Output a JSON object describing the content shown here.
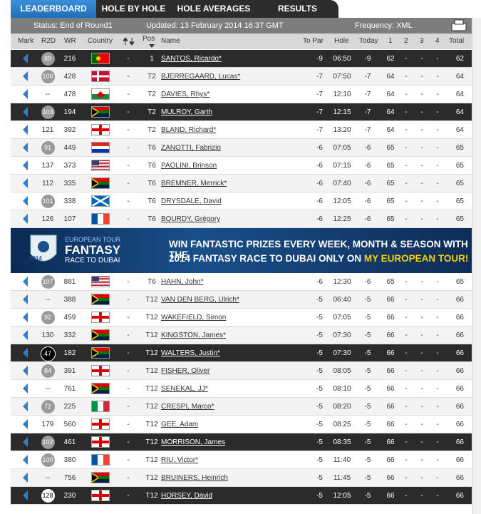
{
  "tabs": [
    "LEADERBOARD",
    "HOLE BY HOLE",
    "HOLE AVERAGES",
    "RESULTS"
  ],
  "status": {
    "state": "Status: End of Round1",
    "updated": "Updated: 13 February 2014 16:37 GMT",
    "frequency": "Frequency: XML"
  },
  "headers": {
    "mark": "Mark",
    "r2d": "R2D",
    "wr": "WR",
    "country": "Country",
    "pos": "Pos",
    "name": "Name",
    "to_par": "To Par",
    "hole": "Hole",
    "today": "Today",
    "r1": "1",
    "r2": "2",
    "r3": "3",
    "r4": "4",
    "total": "Total"
  },
  "banner": {
    "brand": "EUROPEAN TOUR",
    "fantasy": "FANTASY",
    "race": "RACE TO DUBAI",
    "year": "2014",
    "line1": "WIN FANTASTIC PRIZES EVERY WEEK, MONTH & SEASON WITH THE",
    "line2": "2014 FANTASY RACE TO DUBAI ONLY ON ",
    "line2_highlight": "MY EUROPEAN TOUR!"
  },
  "rows": [
    {
      "r2d": 89,
      "badge": "grey",
      "wr": 216,
      "move": "-",
      "pos": "1",
      "name": "SANTOS, Ricardo*",
      "to_par": -9,
      "hole": "06:50",
      "today": -9,
      "r1": 62,
      "r2": "-",
      "r3": "-",
      "r4": "-",
      "total": 62,
      "highlight": true
    },
    {
      "r2d": 106,
      "badge": "grey",
      "wr": 428,
      "move": "-",
      "pos": "T2",
      "name": "BJERREGAARD, Lucas*",
      "to_par": -7,
      "hole": "07:50",
      "today": -7,
      "r1": 64,
      "r2": "-",
      "r3": "-",
      "r4": "-",
      "total": 64,
      "highlight": false
    },
    {
      "r2d": "--",
      "badge": "none",
      "wr": 478,
      "move": "-",
      "pos": "T2",
      "name": "DAVIES, Rhys*",
      "to_par": -7,
      "hole": "12:10",
      "today": -7,
      "r1": 64,
      "r2": "-",
      "r3": "-",
      "r4": "-",
      "total": 64,
      "highlight": false
    },
    {
      "r2d": 103,
      "badge": "grey",
      "wr": 194,
      "move": "-",
      "pos": "T2",
      "name": "MULROY, Garth",
      "to_par": -7,
      "hole": "12:15",
      "today": -7,
      "r1": 64,
      "r2": "-",
      "r3": "-",
      "r4": "-",
      "total": 64,
      "highlight": true
    },
    {
      "r2d": 121,
      "badge": "none",
      "wr": 392,
      "move": "-",
      "pos": "T2",
      "name": "BLAND, Richard*",
      "to_par": -7,
      "hole": "13:20",
      "today": -7,
      "r1": 64,
      "r2": "-",
      "r3": "-",
      "r4": "-",
      "total": 64,
      "highlight": false
    },
    {
      "r2d": 91,
      "badge": "grey",
      "wr": 449,
      "move": "-",
      "pos": "T6",
      "name": "ZANOTTI, Fabrizio",
      "to_par": -6,
      "hole": "07:05",
      "today": -6,
      "r1": 65,
      "r2": "-",
      "r3": "-",
      "r4": "-",
      "total": 65,
      "highlight": false
    },
    {
      "r2d": 137,
      "badge": "none",
      "wr": 373,
      "move": "-",
      "pos": "T6",
      "name": "PAOLINI, Brinson",
      "to_par": -6,
      "hole": "07:15",
      "today": -6,
      "r1": 65,
      "r2": "-",
      "r3": "-",
      "r4": "-",
      "total": 65,
      "highlight": false
    },
    {
      "r2d": 112,
      "badge": "none",
      "wr": 335,
      "move": "-",
      "pos": "T6",
      "name": "BREMNER, Merrick*",
      "to_par": -6,
      "hole": "07:40",
      "today": -6,
      "r1": 65,
      "r2": "-",
      "r3": "-",
      "r4": "-",
      "total": 65,
      "highlight": false
    },
    {
      "r2d": 101,
      "badge": "grey",
      "wr": 338,
      "move": "-",
      "pos": "T6",
      "name": "DRYSDALE, David",
      "to_par": -6,
      "hole": "12:05",
      "today": -6,
      "r1": 65,
      "r2": "-",
      "r3": "-",
      "r4": "-",
      "total": 65,
      "highlight": false
    },
    {
      "r2d": 126,
      "badge": "none",
      "wr": 107,
      "move": "-",
      "pos": "T6",
      "name": "BOURDY, Grégory",
      "to_par": -6,
      "hole": "12:25",
      "today": -6,
      "r1": 65,
      "r2": "-",
      "r3": "-",
      "r4": "-",
      "total": 65,
      "highlight": false
    },
    {
      "r2d": 107,
      "badge": "grey",
      "wr": 881,
      "move": "-",
      "pos": "T6",
      "name": "HAHN, John*",
      "to_par": -6,
      "hole": "12:30",
      "today": -6,
      "r1": 65,
      "r2": "-",
      "r3": "-",
      "r4": "-",
      "total": 65,
      "highlight": false
    },
    {
      "r2d": "--",
      "badge": "none",
      "wr": 388,
      "move": "-",
      "pos": "T12",
      "name": "VAN DEN BERG, Ulrich*",
      "to_par": -5,
      "hole": "06:40",
      "today": -5,
      "r1": 66,
      "r2": "-",
      "r3": "-",
      "r4": "-",
      "total": 66,
      "highlight": false
    },
    {
      "r2d": 92,
      "badge": "grey",
      "wr": 459,
      "move": "-",
      "pos": "T12",
      "name": "WAKEFIELD, Simon",
      "to_par": -5,
      "hole": "07:05",
      "today": -5,
      "r1": 66,
      "r2": "-",
      "r3": "-",
      "r4": "-",
      "total": 66,
      "highlight": false
    },
    {
      "r2d": 130,
      "badge": "none",
      "wr": 332,
      "move": "-",
      "pos": "T12",
      "name": "KINGSTON, James*",
      "to_par": -5,
      "hole": "07:30",
      "today": -5,
      "r1": 66,
      "r2": "-",
      "r3": "-",
      "r4": "-",
      "total": 66,
      "highlight": false
    },
    {
      "r2d": 47,
      "badge": "black",
      "wr": 182,
      "move": "-",
      "pos": "T12",
      "name": "WALTERS, Justin*",
      "to_par": -5,
      "hole": "07:30",
      "today": -5,
      "r1": 66,
      "r2": "-",
      "r3": "-",
      "r4": "-",
      "total": 66,
      "highlight": true
    },
    {
      "r2d": 84,
      "badge": "grey",
      "wr": 391,
      "move": "-",
      "pos": "T12",
      "name": "FISHER, Oliver",
      "to_par": -5,
      "hole": "08:05",
      "today": -5,
      "r1": 66,
      "r2": "-",
      "r3": "-",
      "r4": "-",
      "total": 66,
      "highlight": false
    },
    {
      "r2d": "--",
      "badge": "none",
      "wr": 761,
      "move": "-",
      "pos": "T12",
      "name": "SENEKAL, JJ*",
      "to_par": -5,
      "hole": "08:10",
      "today": -5,
      "r1": 66,
      "r2": "-",
      "r3": "-",
      "r4": "-",
      "total": 66,
      "highlight": false
    },
    {
      "r2d": 72,
      "badge": "grey",
      "wr": 225,
      "move": "-",
      "pos": "T12",
      "name": "CRESPI, Marco*",
      "to_par": -5,
      "hole": "08:20",
      "today": -5,
      "r1": 66,
      "r2": "-",
      "r3": "-",
      "r4": "-",
      "total": 66,
      "highlight": false
    },
    {
      "r2d": 179,
      "badge": "none",
      "wr": 560,
      "move": "-",
      "pos": "T12",
      "name": "GEE, Adam",
      "to_par": -5,
      "hole": "08:25",
      "today": -5,
      "r1": 66,
      "r2": "-",
      "r3": "-",
      "r4": "-",
      "total": 66,
      "highlight": false
    },
    {
      "r2d": 102,
      "badge": "grey",
      "wr": 461,
      "move": "-",
      "pos": "T12",
      "name": "MORRISON, James",
      "to_par": -5,
      "hole": "08:35",
      "today": -5,
      "r1": 66,
      "r2": "-",
      "r3": "-",
      "r4": "-",
      "total": 66,
      "highlight": true
    },
    {
      "r2d": 100,
      "badge": "grey",
      "wr": 380,
      "move": "-",
      "pos": "T12",
      "name": "RIU, Victor*",
      "to_par": -5,
      "hole": "11:40",
      "today": -5,
      "r1": 66,
      "r2": "-",
      "r3": "-",
      "r4": "-",
      "total": 66,
      "highlight": false
    },
    {
      "r2d": "--",
      "badge": "none",
      "wr": 756,
      "move": "-",
      "pos": "T12",
      "name": "BRUINERS, Heinrich",
      "to_par": -5,
      "hole": "11:45",
      "today": -5,
      "r1": 66,
      "r2": "-",
      "r3": "-",
      "r4": "-",
      "total": 66,
      "highlight": false
    },
    {
      "r2d": 128,
      "badge": "white",
      "wr": 230,
      "move": "-",
      "pos": "T12",
      "name": "HORSEY, David",
      "to_par": -5,
      "hole": "12:05",
      "today": -5,
      "r1": 66,
      "r2": "-",
      "r3": "-",
      "r4": "-",
      "total": 66,
      "highlight": true
    }
  ]
}
